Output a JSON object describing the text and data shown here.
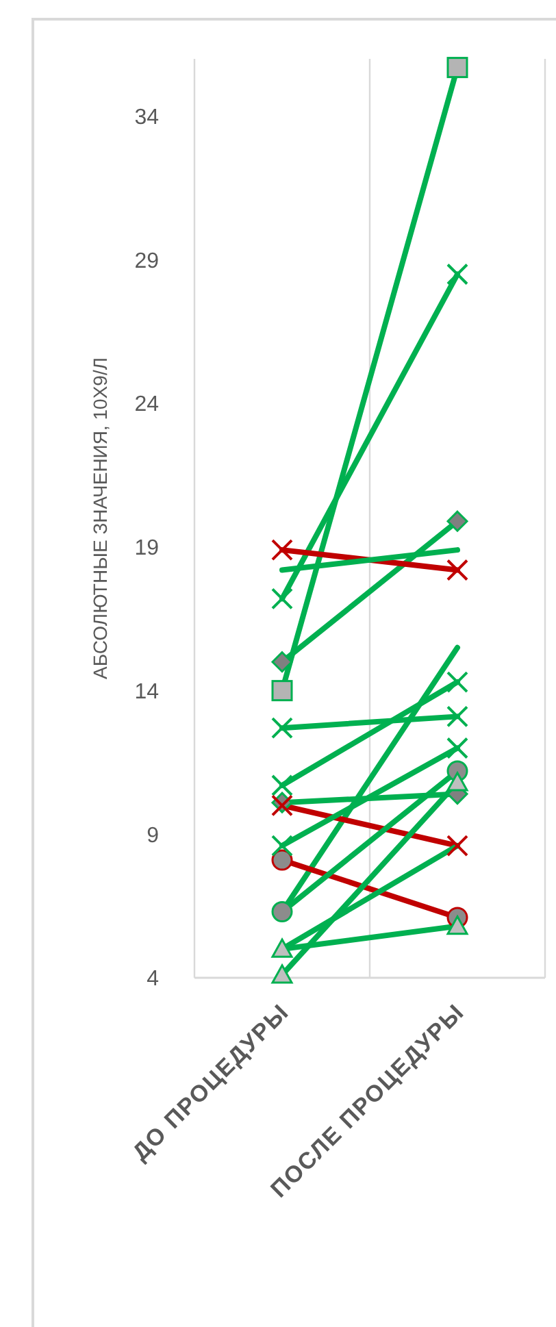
{
  "chart_data": {
    "type": "line",
    "ylabel": "АБСОЛЮТНЫЕ ЗНАЧЕНИЯ, 10Х9/Л",
    "categories": [
      "ДО ПРОЦЕДУРЫ",
      "ПОСЛЕ ПРОЦЕДУРЫ"
    ],
    "ylim": [
      4,
      36
    ],
    "yticks": [
      4,
      9,
      14,
      19,
      24,
      29,
      34
    ],
    "grid": "x",
    "series": [
      {
        "color": "#00b050",
        "marker": "square",
        "values": [
          14,
          35.7
        ]
      },
      {
        "color": "#00b050",
        "marker": "cross",
        "values": [
          17.2,
          28.5
        ]
      },
      {
        "color": "#00b050",
        "marker": "diamond",
        "values": [
          15,
          19.9
        ]
      },
      {
        "color": "#c00000",
        "marker": "cross",
        "values": [
          18.9,
          18.2
        ]
      },
      {
        "color": "#00b050",
        "values": [
          18.2,
          18.9
        ]
      },
      {
        "color": "#00b050",
        "marker": "cross",
        "values": [
          12.7,
          13.1
        ]
      },
      {
        "color": "#00b050",
        "marker": "cross",
        "values": [
          10.7,
          14.3
        ]
      },
      {
        "color": "#00b050",
        "values": [
          6.3,
          15.5
        ]
      },
      {
        "color": "#00b050",
        "marker": "diamond",
        "values": [
          10.1,
          10.4
        ]
      },
      {
        "color": "#c00000",
        "marker": "cross",
        "values": [
          10,
          8.6
        ]
      },
      {
        "color": "#c00000",
        "marker": "circle",
        "values": [
          8.1,
          6.1
        ]
      },
      {
        "color": "#00b050",
        "marker": "cross",
        "values": [
          8.6,
          12
        ]
      },
      {
        "color": "#00b050",
        "marker": "circle",
        "values": [
          6.3,
          11.2
        ]
      },
      {
        "color": "#00b050",
        "marker": "triangle",
        "values": [
          4.1,
          10.8
        ]
      },
      {
        "color": "#00b050",
        "marker": "triangle",
        "values": [
          5,
          5.8
        ]
      },
      {
        "color": "#00b050",
        "values": [
          5,
          8.6
        ]
      }
    ]
  }
}
